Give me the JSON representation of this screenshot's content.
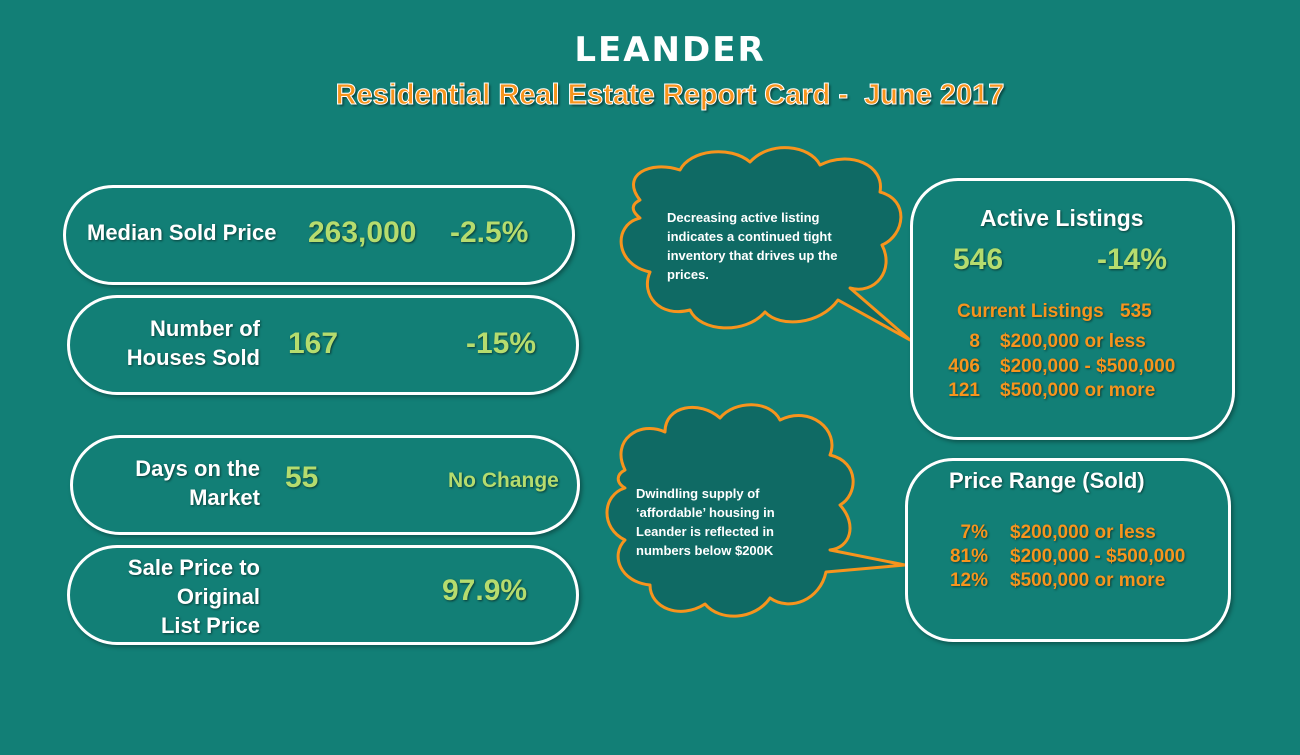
{
  "header": {
    "title": "LEANDER",
    "subtitle": "Residential Real Estate Report Card -  June 2017"
  },
  "stats": {
    "median": {
      "label": "Median Sold Price",
      "value": "263,000",
      "change": "-2.5%"
    },
    "houses": {
      "label_line1": "Number of",
      "label_line2": "Houses Sold",
      "value": "167",
      "change": "-15%"
    },
    "days": {
      "label_line1": "Days on the",
      "label_line2": "Market",
      "value": "55",
      "change": "No Change"
    },
    "sale": {
      "label_line1": "Sale Price to",
      "label_line2": "Original",
      "label_line3": "List Price",
      "value": "97.9%"
    }
  },
  "active_listings": {
    "title": "Active Listings",
    "value": "546",
    "change": "-14%",
    "current_label": "Current Listings",
    "current_value": "535",
    "rows": [
      {
        "count": "8",
        "range": "$200,000 or less"
      },
      {
        "count": "406",
        "range": "$200,000 - $500,000"
      },
      {
        "count": "121",
        "range": "$500,000 or more"
      }
    ]
  },
  "price_range": {
    "title": "Price Range (Sold)",
    "rows": [
      {
        "pct": "7%",
        "range": "$200,000 or less"
      },
      {
        "pct": "81%",
        "range": "$200,000 - $500,000"
      },
      {
        "pct": "12%",
        "range": "$500,000 or more"
      }
    ]
  },
  "bubbles": {
    "top": {
      "line1": "Decreasing active listing",
      "line2": "indicates a continued tight",
      "line3": "inventory that drives up the",
      "line4": "prices."
    },
    "bottom": {
      "line1": "Dwindling supply of",
      "line2": "‘affordable’ housing in",
      "line3": "Leander is reflected in",
      "line4": "numbers below $200K"
    }
  },
  "colors": {
    "background": "#127f76",
    "accent_orange": "#f7941d",
    "value_green": "#b5dc6e",
    "bubble_fill": "#0f6a64"
  }
}
